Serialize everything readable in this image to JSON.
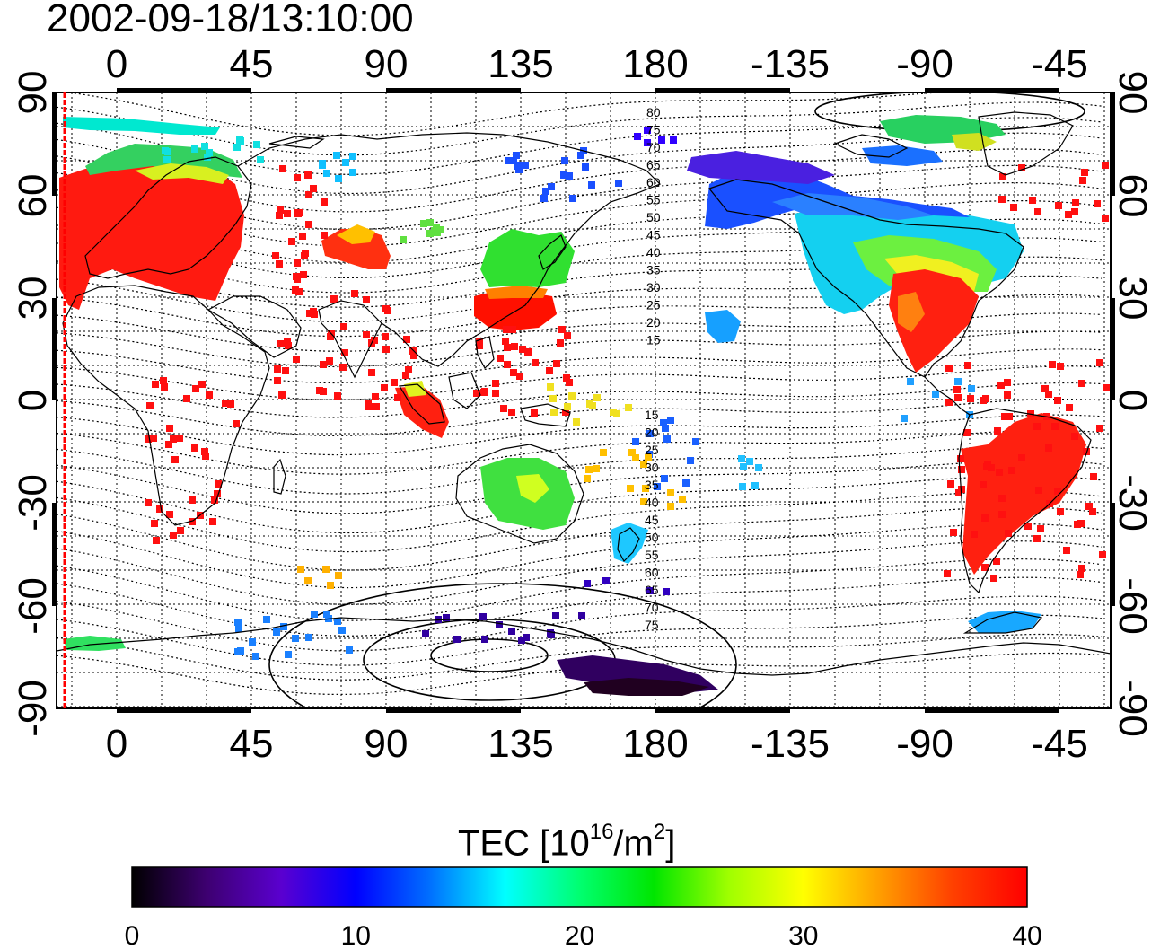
{
  "timestamp": "2002-09-18/13:10:00",
  "map": {
    "top_lon_labels": [
      "0",
      "45",
      "90",
      "135",
      "180",
      "-135",
      "-90",
      "-45"
    ],
    "bottom_lon_labels": [
      "0",
      "45",
      "90",
      "135",
      "180",
      "-135",
      "-90",
      "-45"
    ],
    "left_lat_labels": [
      "90",
      "60",
      "30",
      "0",
      "-30",
      "-60",
      "-90"
    ],
    "right_lat_labels": [
      "90",
      "60",
      "30",
      "0",
      "-30",
      "-60",
      "-90"
    ],
    "north_contour_labels": [
      "80",
      "75",
      "70",
      "65",
      "60",
      "55",
      "50",
      "45",
      "40",
      "35",
      "30",
      "25",
      "20",
      "15"
    ],
    "south_contour_labels": [
      "15",
      "20",
      "25",
      "30",
      "35",
      "40",
      "45",
      "50",
      "55",
      "60",
      "65",
      "70",
      "75"
    ]
  },
  "colorbar": {
    "title_main": "TEC  [10",
    "title_sup1": "16",
    "title_mid": "/m",
    "title_sup2": "2",
    "title_end": "]",
    "tick_labels": [
      "0",
      "10",
      "20",
      "30",
      "40"
    ],
    "min": 0,
    "max": 40,
    "stops": [
      "#000000",
      "#3d0070",
      "#5a00d0",
      "#0000ff",
      "#0070ff",
      "#00ffff",
      "#00ff70",
      "#00e600",
      "#a0ff00",
      "#ffff00",
      "#ffa000",
      "#ff4000",
      "#ff0000"
    ]
  },
  "colors": {
    "land_outline": "#000000",
    "grid": "#000000",
    "terminator": "#ff0000",
    "contour": "#000000"
  }
}
